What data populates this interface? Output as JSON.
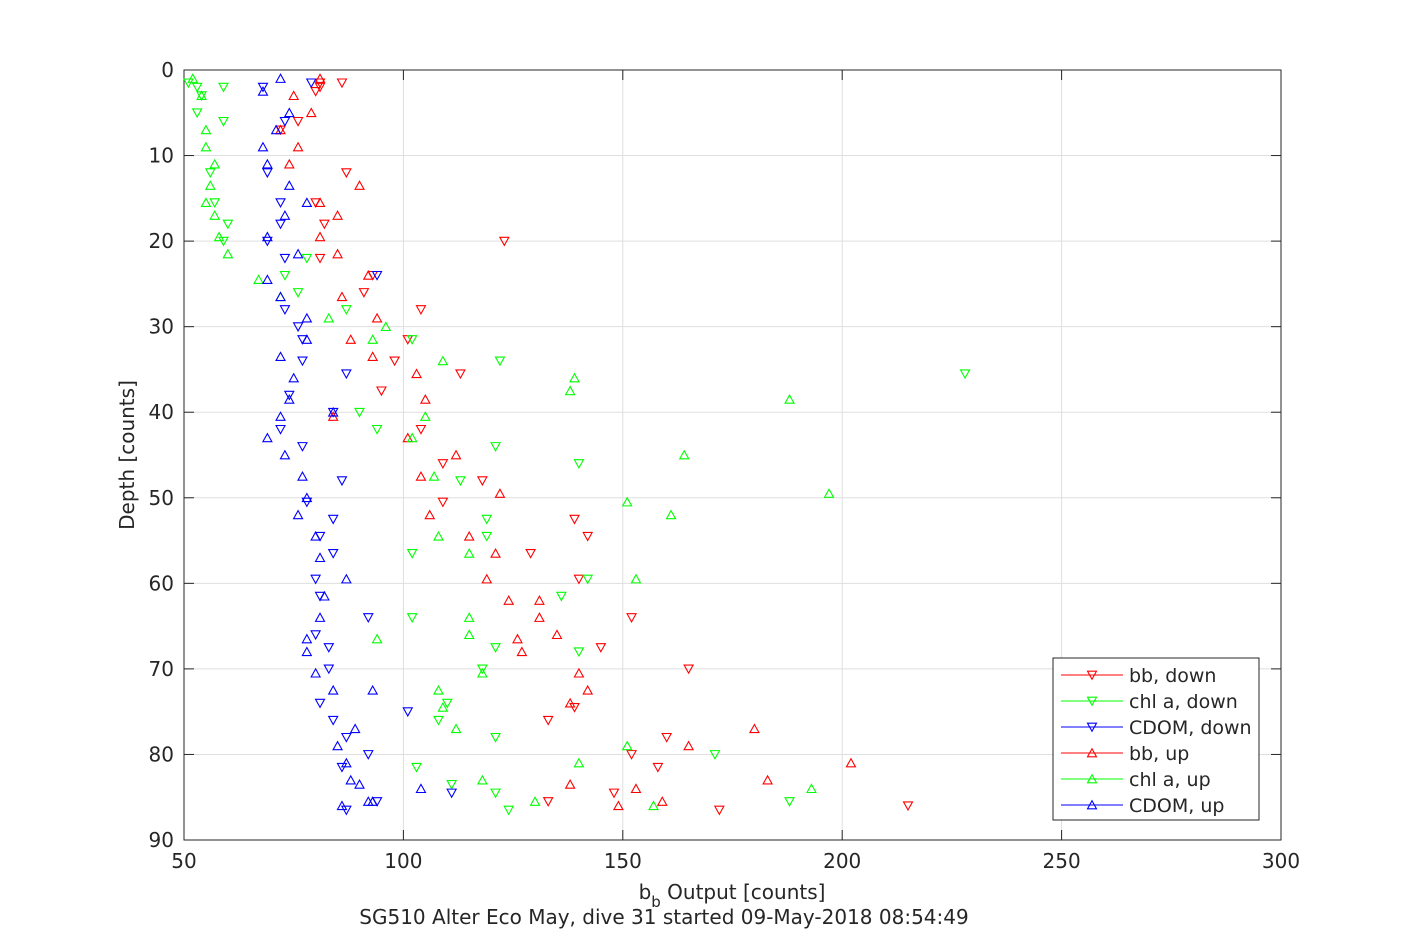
{
  "chart_data": {
    "type": "scatter",
    "title": "SG510 Alter Eco May, dive 31 started 09-May-2018 08:54:49",
    "xlabel_main": "b",
    "xlabel_sub": "b",
    "xlabel_rest": " Output [counts]",
    "ylabel": "Depth [counts]",
    "xlim": [
      50,
      300
    ],
    "ylim": [
      0,
      90
    ],
    "y_reversed": true,
    "grid": true,
    "legend_position": "bottom-right",
    "xticks": [
      50,
      100,
      150,
      200,
      250,
      300
    ],
    "yticks": [
      0,
      10,
      20,
      30,
      40,
      50,
      60,
      70,
      80,
      90
    ],
    "series": [
      {
        "name": "bb, down",
        "color": "#ff0000",
        "marker": "down",
        "points": [
          [
            81,
            1.5
          ],
          [
            86,
            1.5
          ],
          [
            81,
            2
          ],
          [
            80,
            2.5
          ],
          [
            76,
            6
          ],
          [
            72,
            7
          ],
          [
            87,
            12
          ],
          [
            80,
            15.5
          ],
          [
            82,
            18
          ],
          [
            123,
            20
          ],
          [
            81,
            22
          ],
          [
            93,
            24
          ],
          [
            91,
            26
          ],
          [
            104,
            28
          ],
          [
            101,
            31.5
          ],
          [
            98,
            34
          ],
          [
            113,
            35.5
          ],
          [
            95,
            37.5
          ],
          [
            104,
            42
          ],
          [
            109,
            46
          ],
          [
            118,
            48
          ],
          [
            109,
            50.5
          ],
          [
            139,
            52.5
          ],
          [
            142,
            54.5
          ],
          [
            129,
            56.5
          ],
          [
            140,
            59.5
          ],
          [
            152,
            64
          ],
          [
            145,
            67.5
          ],
          [
            165,
            70
          ],
          [
            139,
            74.5
          ],
          [
            133,
            76
          ],
          [
            160,
            78
          ],
          [
            152,
            80
          ],
          [
            158,
            81.5
          ],
          [
            148,
            84.5
          ],
          [
            133,
            85.5
          ],
          [
            172,
            86.5
          ],
          [
            215,
            86
          ]
        ]
      },
      {
        "name": "chl a, down",
        "color": "#00ff00",
        "marker": "down",
        "points": [
          [
            51,
            1.5
          ],
          [
            53,
            2
          ],
          [
            59,
            2
          ],
          [
            54,
            3
          ],
          [
            53,
            5
          ],
          [
            59,
            6
          ],
          [
            56,
            12
          ],
          [
            57,
            15.5
          ],
          [
            60,
            18
          ],
          [
            59,
            20
          ],
          [
            78,
            22
          ],
          [
            73,
            24
          ],
          [
            76,
            26
          ],
          [
            87,
            28
          ],
          [
            102,
            31.5
          ],
          [
            122,
            34
          ],
          [
            228,
            35.5
          ],
          [
            90,
            40
          ],
          [
            94,
            42
          ],
          [
            121,
            44
          ],
          [
            140,
            46
          ],
          [
            113,
            48
          ],
          [
            119,
            52.5
          ],
          [
            119,
            54.5
          ],
          [
            102,
            56.5
          ],
          [
            142,
            59.5
          ],
          [
            136,
            61.5
          ],
          [
            102,
            64
          ],
          [
            121,
            67.5
          ],
          [
            118,
            70
          ],
          [
            140,
            68
          ],
          [
            110,
            74
          ],
          [
            108,
            76
          ],
          [
            121,
            78
          ],
          [
            171,
            80
          ],
          [
            103,
            81.5
          ],
          [
            111,
            83.5
          ],
          [
            121,
            84.5
          ],
          [
            188,
            85.5
          ],
          [
            124,
            86.5
          ]
        ]
      },
      {
        "name": "CDOM, down",
        "color": "#0000ff",
        "marker": "down",
        "points": [
          [
            68,
            2
          ],
          [
            79,
            1.5
          ],
          [
            73,
            6
          ],
          [
            69,
            12
          ],
          [
            72,
            15.5
          ],
          [
            72,
            18
          ],
          [
            69,
            20
          ],
          [
            73,
            22
          ],
          [
            94,
            24
          ],
          [
            73,
            28
          ],
          [
            76,
            30
          ],
          [
            77,
            31.5
          ],
          [
            77,
            34
          ],
          [
            87,
            35.5
          ],
          [
            74,
            38
          ],
          [
            84,
            40
          ],
          [
            72,
            42
          ],
          [
            77,
            44
          ],
          [
            86,
            48
          ],
          [
            78,
            50.5
          ],
          [
            84,
            52.5
          ],
          [
            81,
            54.5
          ],
          [
            84,
            56.5
          ],
          [
            80,
            59.5
          ],
          [
            81,
            61.5
          ],
          [
            92,
            64
          ],
          [
            80,
            66
          ],
          [
            83,
            67.5
          ],
          [
            83,
            70
          ],
          [
            81,
            74
          ],
          [
            84,
            76
          ],
          [
            87,
            78
          ],
          [
            92,
            80
          ],
          [
            86,
            81.5
          ],
          [
            94,
            85.5
          ],
          [
            111,
            84.5
          ],
          [
            101,
            75
          ],
          [
            87,
            86.5
          ]
        ]
      },
      {
        "name": "bb, up",
        "color": "#ff0000",
        "marker": "up",
        "points": [
          [
            81,
            1
          ],
          [
            75,
            3
          ],
          [
            79,
            5
          ],
          [
            72,
            7
          ],
          [
            76,
            9
          ],
          [
            74,
            11
          ],
          [
            90,
            13.5
          ],
          [
            81,
            15.5
          ],
          [
            85,
            17
          ],
          [
            81,
            19.5
          ],
          [
            85,
            21.5
          ],
          [
            92,
            24
          ],
          [
            86,
            26.5
          ],
          [
            94,
            29
          ],
          [
            88,
            31.5
          ],
          [
            93,
            33.5
          ],
          [
            103,
            35.5
          ],
          [
            105,
            38.5
          ],
          [
            84,
            40.5
          ],
          [
            101,
            43
          ],
          [
            112,
            45
          ],
          [
            104,
            47.5
          ],
          [
            122,
            49.5
          ],
          [
            106,
            52
          ],
          [
            115,
            54.5
          ],
          [
            121,
            56.5
          ],
          [
            119,
            59.5
          ],
          [
            124,
            62
          ],
          [
            131,
            62
          ],
          [
            131,
            64
          ],
          [
            135,
            66
          ],
          [
            126,
            66.5
          ],
          [
            127,
            68
          ],
          [
            140,
            70.5
          ],
          [
            142,
            72.5
          ],
          [
            138,
            74
          ],
          [
            180,
            77
          ],
          [
            165,
            79
          ],
          [
            202,
            81
          ],
          [
            138,
            83.5
          ],
          [
            183,
            83
          ],
          [
            149,
            86
          ],
          [
            159,
            85.5
          ],
          [
            153,
            84
          ]
        ]
      },
      {
        "name": "chl a, up",
        "color": "#00ff00",
        "marker": "up",
        "points": [
          [
            52,
            1
          ],
          [
            54,
            3
          ],
          [
            55,
            7
          ],
          [
            55,
            9
          ],
          [
            57,
            11
          ],
          [
            56,
            13.5
          ],
          [
            55,
            15.5
          ],
          [
            57,
            17
          ],
          [
            58,
            19.5
          ],
          [
            60,
            21.5
          ],
          [
            67,
            24.5
          ],
          [
            72,
            26.5
          ],
          [
            83,
            29
          ],
          [
            96,
            30
          ],
          [
            93,
            31.5
          ],
          [
            109,
            34
          ],
          [
            139,
            36
          ],
          [
            138,
            37.5
          ],
          [
            188,
            38.5
          ],
          [
            105,
            40.5
          ],
          [
            102,
            43
          ],
          [
            164,
            45
          ],
          [
            107,
            47.5
          ],
          [
            197,
            49.5
          ],
          [
            151,
            50.5
          ],
          [
            161,
            52
          ],
          [
            108,
            54.5
          ],
          [
            115,
            56.5
          ],
          [
            153,
            59.5
          ],
          [
            115,
            64
          ],
          [
            115,
            66
          ],
          [
            94,
            66.5
          ],
          [
            118,
            70.5
          ],
          [
            108,
            72.5
          ],
          [
            109,
            74.5
          ],
          [
            112,
            77
          ],
          [
            151,
            79
          ],
          [
            140,
            81
          ],
          [
            118,
            83
          ],
          [
            130,
            85.5
          ],
          [
            157,
            86
          ],
          [
            193,
            84
          ]
        ]
      },
      {
        "name": "CDOM, up",
        "color": "#0000ff",
        "marker": "up",
        "points": [
          [
            72,
            1
          ],
          [
            68,
            2.5
          ],
          [
            74,
            5
          ],
          [
            71,
            7
          ],
          [
            68,
            9
          ],
          [
            69,
            11
          ],
          [
            74,
            13.5
          ],
          [
            78,
            15.5
          ],
          [
            73,
            17
          ],
          [
            69,
            19.5
          ],
          [
            76,
            21.5
          ],
          [
            69,
            24.5
          ],
          [
            72,
            26.5
          ],
          [
            78,
            29
          ],
          [
            78,
            31.5
          ],
          [
            72,
            33.5
          ],
          [
            75,
            36
          ],
          [
            74,
            38.5
          ],
          [
            84,
            40
          ],
          [
            72,
            40.5
          ],
          [
            69,
            43
          ],
          [
            73,
            45
          ],
          [
            77,
            47.5
          ],
          [
            78,
            50
          ],
          [
            76,
            52
          ],
          [
            80,
            54.5
          ],
          [
            81,
            57
          ],
          [
            87,
            59.5
          ],
          [
            82,
            61.5
          ],
          [
            81,
            64
          ],
          [
            78,
            66.5
          ],
          [
            78,
            68
          ],
          [
            80,
            70.5
          ],
          [
            84,
            72.5
          ],
          [
            93,
            72.5
          ],
          [
            89,
            77
          ],
          [
            85,
            79
          ],
          [
            87,
            81
          ],
          [
            88,
            83
          ],
          [
            90,
            83.5
          ],
          [
            92,
            85.5
          ],
          [
            93,
            85.5
          ],
          [
            104,
            84
          ],
          [
            86,
            86
          ]
        ]
      }
    ]
  }
}
